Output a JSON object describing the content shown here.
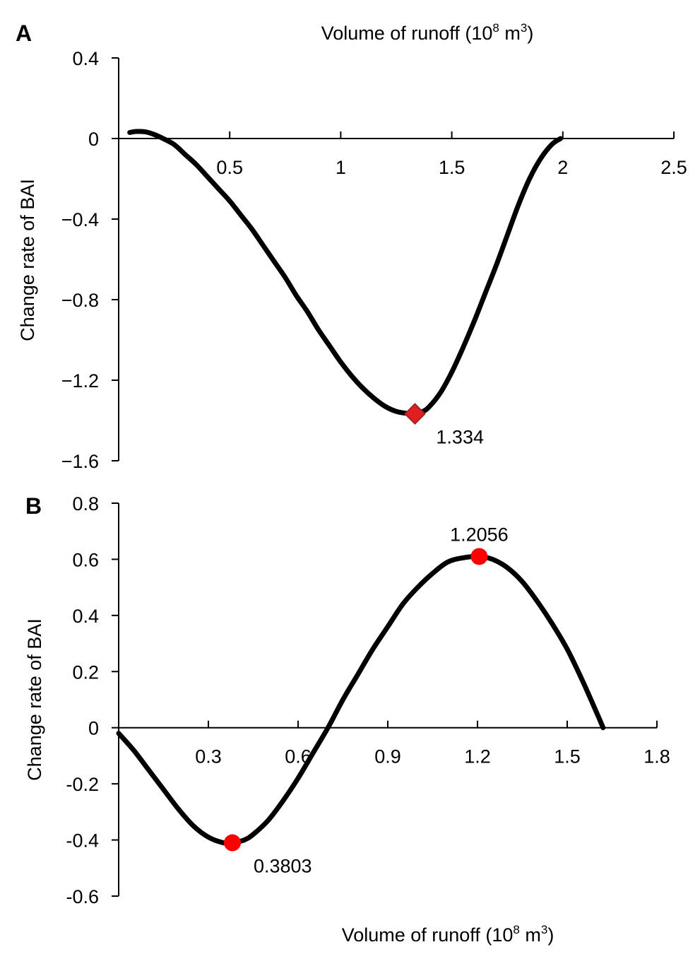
{
  "chart_data": [
    {
      "panel": "A",
      "type": "line",
      "xlabel": "Volume of runoff",
      "xlabel_unit_base": "(10",
      "xlabel_unit_exp": "8",
      "xlabel_unit_mid": " m",
      "xlabel_unit_exp2": "3",
      "xlabel_unit_end": ")",
      "ylabel": "Change rate of BAI",
      "xlim": [
        0,
        2.5
      ],
      "ylim": [
        -1.6,
        0.4
      ],
      "xticks": [
        "0.5",
        "1",
        "1.5",
        "2",
        "2.5"
      ],
      "xtick_values": [
        0.5,
        1,
        1.5,
        2,
        2.5
      ],
      "yticks": [
        "0.4",
        "0",
        "−0.4",
        "−0.8",
        "−1.2",
        "−1.6"
      ],
      "ytick_values": [
        0.4,
        0,
        -0.4,
        -0.8,
        -1.2,
        -1.6
      ],
      "series": [
        {
          "x": [
            0.05,
            0.08,
            0.12,
            0.16,
            0.2,
            0.25,
            0.3,
            0.35,
            0.4,
            0.45,
            0.5,
            0.55,
            0.6,
            0.65,
            0.7,
            0.75,
            0.8,
            0.85,
            0.9,
            0.95,
            1.0,
            1.05,
            1.1,
            1.15,
            1.2,
            1.25,
            1.3,
            1.334,
            1.37,
            1.4,
            1.45,
            1.5,
            1.55,
            1.6,
            1.65,
            1.7,
            1.75,
            1.8,
            1.85,
            1.9,
            1.95,
            1.99
          ],
          "y": [
            0.03,
            0.035,
            0.033,
            0.02,
            0.0,
            -0.03,
            -0.08,
            -0.13,
            -0.19,
            -0.25,
            -0.31,
            -0.38,
            -0.45,
            -0.53,
            -0.61,
            -0.69,
            -0.78,
            -0.86,
            -0.95,
            -1.03,
            -1.11,
            -1.18,
            -1.24,
            -1.29,
            -1.33,
            -1.355,
            -1.365,
            -1.367,
            -1.355,
            -1.33,
            -1.26,
            -1.16,
            -1.04,
            -0.91,
            -0.77,
            -0.63,
            -0.48,
            -0.33,
            -0.2,
            -0.1,
            -0.03,
            0.0
          ]
        }
      ],
      "markers": [
        {
          "x": 1.334,
          "y": -1.367,
          "shape": "diamond",
          "color": "#e02020",
          "label": "1.334"
        }
      ]
    },
    {
      "panel": "B",
      "type": "line",
      "xlabel": "Volume of runoff",
      "xlabel_unit_base": "(10",
      "xlabel_unit_exp": "8",
      "xlabel_unit_mid": " m",
      "xlabel_unit_exp2": "3",
      "xlabel_unit_end": ")",
      "ylabel": "Change rate of BAI",
      "xlim": [
        0,
        1.8
      ],
      "ylim": [
        -0.6,
        0.8
      ],
      "xticks": [
        "0.3",
        "0.6",
        "0.9",
        "1.2",
        "1.5",
        "1.8"
      ],
      "xtick_values": [
        0.3,
        0.6,
        0.9,
        1.2,
        1.5,
        1.8
      ],
      "yticks": [
        "0.8",
        "0.6",
        "0.4",
        "0.2",
        "0",
        "-0.2",
        "-0.4",
        "-0.6"
      ],
      "ytick_values": [
        0.8,
        0.6,
        0.4,
        0.2,
        0,
        -0.2,
        -0.4,
        -0.6
      ],
      "series": [
        {
          "x": [
            0.0,
            0.05,
            0.1,
            0.15,
            0.2,
            0.25,
            0.3,
            0.35,
            0.3803,
            0.42,
            0.45,
            0.5,
            0.55,
            0.6,
            0.65,
            0.7,
            0.75,
            0.8,
            0.85,
            0.9,
            0.95,
            1.0,
            1.05,
            1.1,
            1.15,
            1.2056,
            1.25,
            1.3,
            1.35,
            1.4,
            1.45,
            1.5,
            1.55,
            1.6,
            1.62
          ],
          "y": [
            -0.02,
            -0.08,
            -0.15,
            -0.22,
            -0.29,
            -0.35,
            -0.39,
            -0.41,
            -0.41,
            -0.4,
            -0.38,
            -0.33,
            -0.26,
            -0.18,
            -0.09,
            0.0,
            0.1,
            0.19,
            0.28,
            0.36,
            0.44,
            0.5,
            0.55,
            0.59,
            0.605,
            0.61,
            0.6,
            0.57,
            0.52,
            0.45,
            0.37,
            0.28,
            0.17,
            0.05,
            0.0
          ]
        }
      ],
      "markers": [
        {
          "x": 0.3803,
          "y": -0.41,
          "shape": "circle",
          "color": "#ff0000",
          "label": "0.3803"
        },
        {
          "x": 1.2056,
          "y": 0.61,
          "shape": "circle",
          "color": "#ff0000",
          "label": "1.2056"
        }
      ]
    }
  ]
}
